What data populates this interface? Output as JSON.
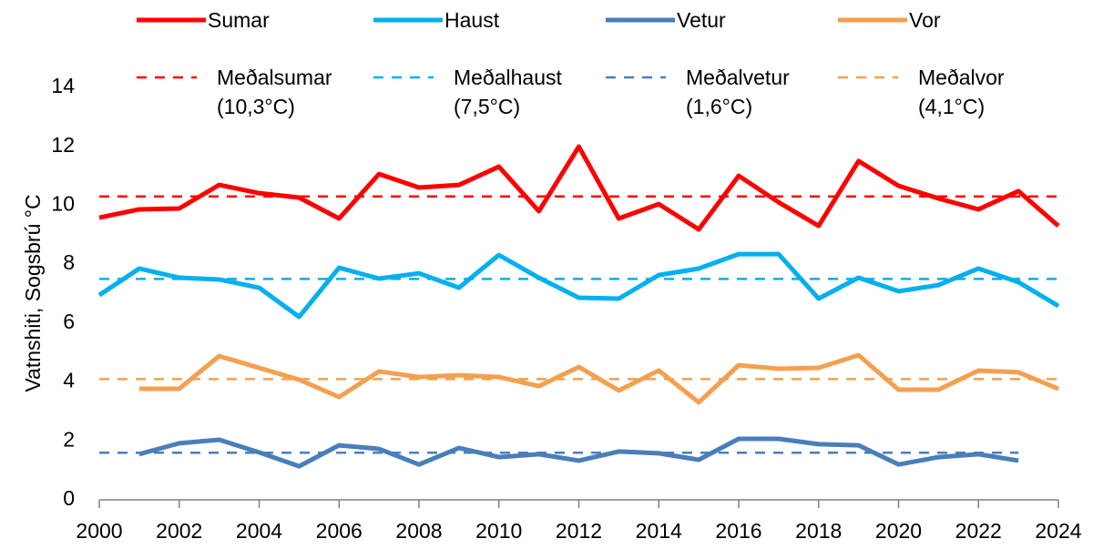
{
  "chart_data": {
    "type": "line",
    "y_label": "Vatnshiti, Sogsbrú °C",
    "x": [
      2000,
      2001,
      2002,
      2003,
      2004,
      2005,
      2006,
      2007,
      2008,
      2009,
      2010,
      2011,
      2012,
      2013,
      2014,
      2015,
      2016,
      2017,
      2018,
      2019,
      2020,
      2021,
      2022,
      2023,
      2024
    ],
    "xlim": [
      2000,
      2024
    ],
    "xticks": [
      2000,
      2002,
      2004,
      2006,
      2008,
      2010,
      2012,
      2014,
      2016,
      2018,
      2020,
      2022,
      2024
    ],
    "ylim": [
      0,
      14
    ],
    "yticks": [
      0,
      2,
      4,
      6,
      8,
      10,
      12,
      14
    ],
    "series": [
      {
        "name": "Sumar",
        "color": "#ff0000",
        "dashed": false,
        "values": [
          9.58,
          9.86,
          9.89,
          10.69,
          10.41,
          10.26,
          9.55,
          11.06,
          10.6,
          10.69,
          11.31,
          9.8,
          11.99,
          9.55,
          10.04,
          9.18,
          11.0,
          10.1,
          9.3,
          11.5,
          10.66,
          10.23,
          9.86,
          10.48,
          9.3
        ]
      },
      {
        "name": "Haust",
        "color": "#00b0f0",
        "dashed": false,
        "values": [
          6.95,
          7.85,
          7.54,
          7.48,
          7.2,
          6.21,
          7.88,
          7.51,
          7.69,
          7.2,
          8.31,
          7.54,
          6.86,
          6.83,
          7.63,
          7.85,
          8.34,
          8.34,
          6.83,
          7.54,
          7.08,
          7.29,
          7.85,
          7.39,
          6.58
        ]
      },
      {
        "name": "Vetur",
        "color": "#4a7ebb",
        "dashed": false,
        "values": [
          null,
          1.55,
          1.92,
          2.04,
          1.61,
          1.14,
          1.85,
          1.73,
          1.2,
          1.76,
          1.45,
          1.55,
          1.33,
          1.64,
          1.58,
          1.36,
          2.07,
          2.07,
          1.89,
          1.85,
          1.2,
          1.45,
          1.55,
          1.33,
          null
        ]
      },
      {
        "name": "Vor",
        "color": "#f4a04f",
        "dashed": false,
        "values": [
          null,
          3.77,
          3.77,
          4.88,
          4.48,
          4.08,
          3.49,
          4.36,
          4.17,
          4.23,
          4.17,
          3.86,
          4.51,
          3.71,
          4.39,
          3.31,
          4.57,
          4.45,
          4.48,
          4.91,
          3.74,
          3.74,
          4.39,
          4.33,
          3.77
        ]
      },
      {
        "name": "Meðalsumar (10,3°C)",
        "color": "#ff0000",
        "dashed": true,
        "values": [
          10.3,
          10.3,
          10.3,
          10.3,
          10.3,
          10.3,
          10.3,
          10.3,
          10.3,
          10.3,
          10.3,
          10.3,
          10.3,
          10.3,
          10.3,
          10.3,
          10.3,
          10.3,
          10.3,
          10.3,
          10.3,
          10.3,
          10.3,
          10.3,
          10.3
        ]
      },
      {
        "name": "Meðalhaust (7,5°C)",
        "color": "#00b0f0",
        "dashed": true,
        "values": [
          7.5,
          7.5,
          7.5,
          7.5,
          7.5,
          7.5,
          7.5,
          7.5,
          7.5,
          7.5,
          7.5,
          7.5,
          7.5,
          7.5,
          7.5,
          7.5,
          7.5,
          7.5,
          7.5,
          7.5,
          7.5,
          7.5,
          7.5,
          7.5,
          7.5
        ]
      },
      {
        "name": "Meðalvetur (1,6°C)",
        "color": "#4a7ebb",
        "dashed": true,
        "values": [
          1.6,
          1.6,
          1.6,
          1.6,
          1.6,
          1.6,
          1.6,
          1.6,
          1.6,
          1.6,
          1.6,
          1.6,
          1.6,
          1.6,
          1.6,
          1.6,
          1.6,
          1.6,
          1.6,
          1.6,
          1.6,
          1.6,
          1.6,
          1.6,
          null
        ]
      },
      {
        "name": "Meðalvor (4,1°C)",
        "color": "#f4a04f",
        "dashed": true,
        "values": [
          4.1,
          4.1,
          4.1,
          4.1,
          4.1,
          4.1,
          4.1,
          4.1,
          4.1,
          4.1,
          4.1,
          4.1,
          4.1,
          4.1,
          4.1,
          4.1,
          4.1,
          4.1,
          4.1,
          4.1,
          4.1,
          4.1,
          4.1,
          4.1,
          4.1
        ]
      }
    ]
  }
}
